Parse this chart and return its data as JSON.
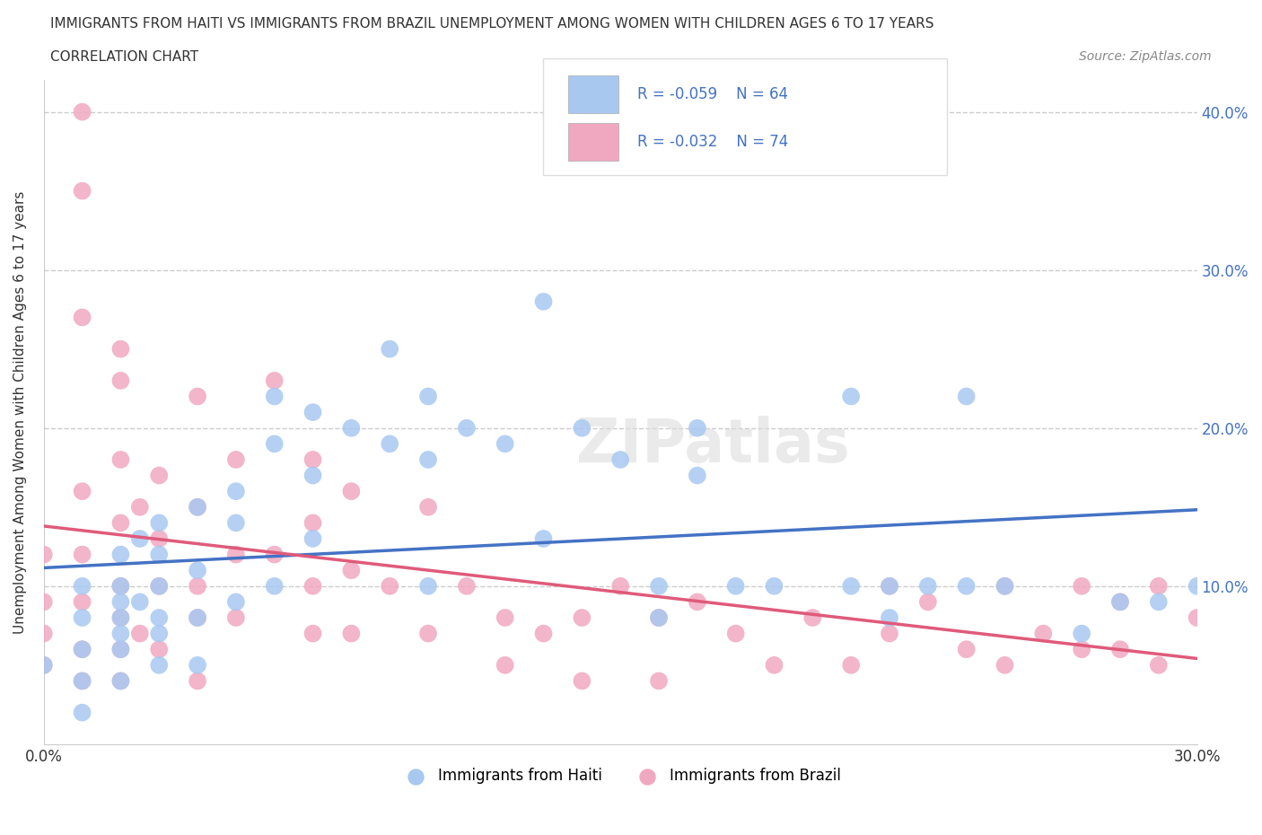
{
  "title_line1": "IMMIGRANTS FROM HAITI VS IMMIGRANTS FROM BRAZIL UNEMPLOYMENT AMONG WOMEN WITH CHILDREN AGES 6 TO 17 YEARS",
  "title_line2": "CORRELATION CHART",
  "source_text": "Source: ZipAtlas.com",
  "ylabel": "Unemployment Among Women with Children Ages 6 to 17 years",
  "xlim": [
    0.0,
    0.3
  ],
  "ylim": [
    0.0,
    0.42
  ],
  "ytick_positions": [
    0.1,
    0.2,
    0.3,
    0.4
  ],
  "ytick_labels": [
    "10.0%",
    "20.0%",
    "30.0%",
    "40.0%"
  ],
  "haiti_color": "#a8c8f0",
  "brazil_color": "#f0a8c0",
  "haiti_line_color": "#4472c4",
  "brazil_line_color": "#e05a7a",
  "R_haiti": -0.059,
  "N_haiti": 64,
  "R_brazil": -0.032,
  "N_brazil": 74,
  "legend_label_haiti": "Immigrants from Haiti",
  "legend_label_brazil": "Immigrants from Brazil",
  "watermark": "ZIPatlas",
  "haiti_x": [
    0.0,
    0.01,
    0.01,
    0.01,
    0.01,
    0.01,
    0.02,
    0.02,
    0.02,
    0.02,
    0.02,
    0.02,
    0.02,
    0.025,
    0.025,
    0.03,
    0.03,
    0.03,
    0.03,
    0.03,
    0.03,
    0.04,
    0.04,
    0.04,
    0.04,
    0.05,
    0.05,
    0.05,
    0.06,
    0.06,
    0.06,
    0.07,
    0.07,
    0.07,
    0.08,
    0.09,
    0.09,
    0.1,
    0.1,
    0.1,
    0.11,
    0.12,
    0.13,
    0.13,
    0.14,
    0.15,
    0.16,
    0.16,
    0.17,
    0.17,
    0.18,
    0.19,
    0.21,
    0.21,
    0.22,
    0.22,
    0.23,
    0.24,
    0.24,
    0.25,
    0.27,
    0.28,
    0.29,
    0.3
  ],
  "haiti_y": [
    0.05,
    0.1,
    0.08,
    0.06,
    0.04,
    0.02,
    0.12,
    0.1,
    0.09,
    0.08,
    0.07,
    0.06,
    0.04,
    0.13,
    0.09,
    0.14,
    0.12,
    0.1,
    0.08,
    0.07,
    0.05,
    0.15,
    0.11,
    0.08,
    0.05,
    0.16,
    0.14,
    0.09,
    0.22,
    0.19,
    0.1,
    0.21,
    0.17,
    0.13,
    0.2,
    0.25,
    0.19,
    0.22,
    0.18,
    0.1,
    0.2,
    0.19,
    0.28,
    0.13,
    0.2,
    0.18,
    0.1,
    0.08,
    0.2,
    0.17,
    0.1,
    0.1,
    0.22,
    0.1,
    0.1,
    0.08,
    0.1,
    0.22,
    0.1,
    0.1,
    0.07,
    0.09,
    0.09,
    0.1
  ],
  "brazil_x": [
    0.0,
    0.0,
    0.0,
    0.0,
    0.01,
    0.01,
    0.01,
    0.01,
    0.01,
    0.01,
    0.01,
    0.01,
    0.02,
    0.02,
    0.02,
    0.02,
    0.02,
    0.02,
    0.02,
    0.02,
    0.025,
    0.025,
    0.03,
    0.03,
    0.03,
    0.03,
    0.04,
    0.04,
    0.04,
    0.04,
    0.04,
    0.05,
    0.05,
    0.05,
    0.06,
    0.06,
    0.07,
    0.07,
    0.07,
    0.07,
    0.08,
    0.08,
    0.08,
    0.09,
    0.1,
    0.1,
    0.11,
    0.12,
    0.12,
    0.13,
    0.14,
    0.14,
    0.15,
    0.16,
    0.16,
    0.17,
    0.18,
    0.19,
    0.2,
    0.21,
    0.22,
    0.22,
    0.23,
    0.24,
    0.25,
    0.25,
    0.26,
    0.27,
    0.27,
    0.28,
    0.28,
    0.29,
    0.29,
    0.3
  ],
  "brazil_y": [
    0.12,
    0.09,
    0.07,
    0.05,
    0.4,
    0.35,
    0.27,
    0.16,
    0.12,
    0.09,
    0.06,
    0.04,
    0.25,
    0.23,
    0.18,
    0.14,
    0.1,
    0.08,
    0.06,
    0.04,
    0.15,
    0.07,
    0.17,
    0.13,
    0.1,
    0.06,
    0.22,
    0.15,
    0.1,
    0.08,
    0.04,
    0.18,
    0.12,
    0.08,
    0.23,
    0.12,
    0.18,
    0.14,
    0.1,
    0.07,
    0.16,
    0.11,
    0.07,
    0.1,
    0.15,
    0.07,
    0.1,
    0.08,
    0.05,
    0.07,
    0.08,
    0.04,
    0.1,
    0.08,
    0.04,
    0.09,
    0.07,
    0.05,
    0.08,
    0.05,
    0.1,
    0.07,
    0.09,
    0.06,
    0.1,
    0.05,
    0.07,
    0.1,
    0.06,
    0.09,
    0.06,
    0.1,
    0.05,
    0.08
  ]
}
